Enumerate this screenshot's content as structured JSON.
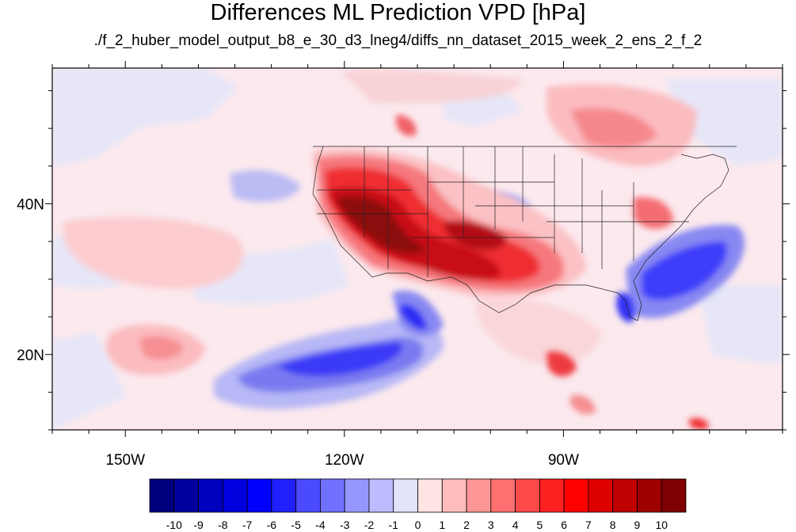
{
  "title": "Differences ML Prediction VPD [hPa]",
  "subtitle": "./f_2_huber_model_output_b8_e_30_d3_lneg4/diffs_nn_dataset_2015_week_2_ens_2_f_2",
  "map": {
    "projection": "cylindrical-equidistant",
    "lon_range": [
      -160,
      -60
    ],
    "lat_range": [
      10,
      58
    ],
    "lon_labels": [
      "150W",
      "120W",
      "90W"
    ],
    "lon_label_values": [
      -150,
      -120,
      -90
    ],
    "lat_labels": [
      "40N",
      "20N"
    ],
    "lat_label_values": [
      40,
      20
    ]
  },
  "colorbar": {
    "labels": [
      "-10",
      "-9",
      "-8",
      "-7",
      "-6",
      "-5",
      "-4",
      "-3",
      "-2",
      "-1",
      "0",
      "1",
      "2",
      "3",
      "4",
      "5",
      "6",
      "7",
      "8",
      "9",
      "10"
    ],
    "colors": [
      "#00007f",
      "#00009f",
      "#0000bf",
      "#0000df",
      "#0000ff",
      "#2020ff",
      "#4a4aff",
      "#7070ff",
      "#9696ff",
      "#bcbcff",
      "#e2e2fa",
      "#ffe4e4",
      "#ffbcbc",
      "#ff9696",
      "#ff7070",
      "#ff4a4a",
      "#ff2020",
      "#ff0000",
      "#df0000",
      "#bf0000",
      "#9f0000",
      "#7f0000"
    ]
  }
}
